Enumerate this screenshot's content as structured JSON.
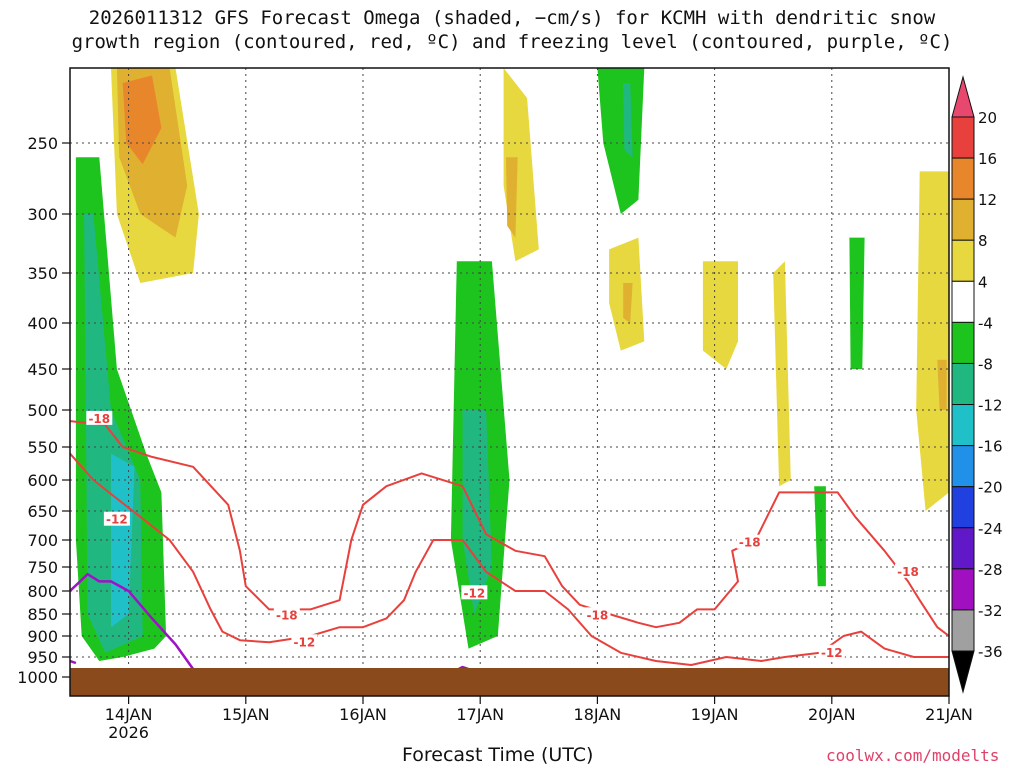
{
  "chart_data": {
    "type": "heatmap",
    "title_line1": "2026011312 GFS Forecast Omega (shaded, −cm/s) for KCMH with dendritic snow",
    "title_line2": "growth region (contoured, red, ºC) and freezing level (contoured, purple, ºC)",
    "xlabel": "Forecast Time (UTC)",
    "credit": "coolwx.com/modelts",
    "x_range_days": [
      0.0,
      7.5
    ],
    "x_ticks": [
      {
        "day": 0.5,
        "label": "14JAN",
        "sublabel": "2026"
      },
      {
        "day": 1.5,
        "label": "15JAN"
      },
      {
        "day": 2.5,
        "label": "16JAN"
      },
      {
        "day": 3.5,
        "label": "17JAN"
      },
      {
        "day": 4.5,
        "label": "18JAN"
      },
      {
        "day": 5.5,
        "label": "19JAN"
      },
      {
        "day": 6.5,
        "label": "20JAN"
      },
      {
        "day": 7.5,
        "label": "21JAN"
      }
    ],
    "y_range_hpa": [
      200,
      1030
    ],
    "y_ticks": [
      250,
      300,
      350,
      400,
      450,
      500,
      550,
      600,
      650,
      700,
      750,
      800,
      850,
      900,
      950,
      1000
    ],
    "colorbar": {
      "levels": [
        20,
        16,
        12,
        8,
        4,
        -4,
        -8,
        -12,
        -16,
        -20,
        -24,
        -28,
        -32,
        -36
      ],
      "colors": [
        "#e8486e",
        "#e8403c",
        "#e8862c",
        "#e0b030",
        "#e8d840",
        "#ffffff",
        "#1ec41e",
        "#20b880",
        "#20c0c8",
        "#2090e8",
        "#2040e0",
        "#6018c8",
        "#a010c0",
        "#a0a0a0",
        "#000000"
      ]
    },
    "omega_regions": [
      {
        "level": 4,
        "color": "#e8d840",
        "pts": [
          [
            0.35,
            200
          ],
          [
            0.9,
            200
          ],
          [
            1.1,
            300
          ],
          [
            1.05,
            350
          ],
          [
            0.6,
            360
          ],
          [
            0.4,
            300
          ]
        ]
      },
      {
        "level": 8,
        "color": "#e0b030",
        "pts": [
          [
            0.4,
            200
          ],
          [
            0.85,
            200
          ],
          [
            1.0,
            280
          ],
          [
            0.9,
            320
          ],
          [
            0.6,
            300
          ],
          [
            0.42,
            260
          ]
        ]
      },
      {
        "level": 12,
        "color": "#e8862c",
        "pts": [
          [
            0.45,
            210
          ],
          [
            0.7,
            205
          ],
          [
            0.78,
            240
          ],
          [
            0.62,
            265
          ],
          [
            0.48,
            250
          ]
        ]
      },
      {
        "level": -4,
        "color": "#1ec41e",
        "pts": [
          [
            0.05,
            260
          ],
          [
            0.25,
            260
          ],
          [
            0.4,
            450
          ],
          [
            0.65,
            560
          ],
          [
            0.78,
            620
          ],
          [
            0.82,
            900
          ],
          [
            0.72,
            930
          ],
          [
            0.45,
            950
          ],
          [
            0.25,
            960
          ],
          [
            0.1,
            900
          ],
          [
            0.05,
            700
          ]
        ]
      },
      {
        "level": -8,
        "color": "#20b880",
        "pts": [
          [
            0.12,
            300
          ],
          [
            0.2,
            300
          ],
          [
            0.35,
            500
          ],
          [
            0.6,
            600
          ],
          [
            0.62,
            900
          ],
          [
            0.3,
            940
          ],
          [
            0.15,
            850
          ]
        ]
      },
      {
        "level": -12,
        "color": "#20c0c8",
        "pts": [
          [
            0.35,
            560
          ],
          [
            0.55,
            580
          ],
          [
            0.5,
            850
          ],
          [
            0.35,
            880
          ]
        ]
      },
      {
        "level": -4,
        "color": "#1ec41e",
        "pts": [
          [
            3.3,
            340
          ],
          [
            3.6,
            340
          ],
          [
            3.75,
            600
          ],
          [
            3.65,
            900
          ],
          [
            3.4,
            930
          ],
          [
            3.25,
            700
          ]
        ]
      },
      {
        "level": -8,
        "color": "#20b880",
        "pts": [
          [
            3.35,
            500
          ],
          [
            3.55,
            500
          ],
          [
            3.6,
            750
          ],
          [
            3.45,
            850
          ],
          [
            3.35,
            700
          ]
        ]
      },
      {
        "level": 4,
        "color": "#e8d840",
        "pts": [
          [
            3.7,
            200
          ],
          [
            3.9,
            220
          ],
          [
            4.0,
            330
          ],
          [
            3.8,
            340
          ],
          [
            3.7,
            280
          ]
        ]
      },
      {
        "level": 8,
        "color": "#e0b030",
        "pts": [
          [
            3.72,
            260
          ],
          [
            3.82,
            260
          ],
          [
            3.8,
            320
          ],
          [
            3.73,
            310
          ]
        ]
      },
      {
        "level": -4,
        "color": "#1ec41e",
        "pts": [
          [
            4.5,
            200
          ],
          [
            4.9,
            200
          ],
          [
            4.85,
            290
          ],
          [
            4.7,
            300
          ],
          [
            4.55,
            250
          ]
        ]
      },
      {
        "level": -8,
        "color": "#20b880",
        "pts": [
          [
            4.72,
            210
          ],
          [
            4.78,
            210
          ],
          [
            4.8,
            260
          ],
          [
            4.73,
            255
          ]
        ]
      },
      {
        "level": 4,
        "color": "#e8d840",
        "pts": [
          [
            4.6,
            330
          ],
          [
            4.85,
            320
          ],
          [
            4.9,
            420
          ],
          [
            4.7,
            430
          ],
          [
            4.6,
            380
          ]
        ]
      },
      {
        "level": 8,
        "color": "#e0b030",
        "pts": [
          [
            4.72,
            360
          ],
          [
            4.8,
            360
          ],
          [
            4.78,
            400
          ],
          [
            4.72,
            395
          ]
        ]
      },
      {
        "level": 4,
        "color": "#e8d840",
        "pts": [
          [
            5.4,
            340
          ],
          [
            5.7,
            340
          ],
          [
            5.7,
            420
          ],
          [
            5.6,
            450
          ],
          [
            5.4,
            430
          ]
        ]
      },
      {
        "level": 4,
        "color": "#e8d840",
        "pts": [
          [
            6.0,
            350
          ],
          [
            6.1,
            340
          ],
          [
            6.15,
            600
          ],
          [
            6.05,
            610
          ]
        ]
      },
      {
        "level": -4,
        "color": "#1ec41e",
        "pts": [
          [
            6.35,
            610
          ],
          [
            6.45,
            610
          ],
          [
            6.45,
            790
          ],
          [
            6.38,
            790
          ]
        ]
      },
      {
        "level": -4,
        "color": "#1ec41e",
        "pts": [
          [
            6.65,
            320
          ],
          [
            6.78,
            320
          ],
          [
            6.76,
            450
          ],
          [
            6.66,
            450
          ]
        ]
      },
      {
        "level": 4,
        "color": "#e8d840",
        "pts": [
          [
            7.25,
            270
          ],
          [
            7.5,
            270
          ],
          [
            7.5,
            620
          ],
          [
            7.3,
            650
          ],
          [
            7.22,
            500
          ]
        ]
      },
      {
        "level": 8,
        "color": "#e0b030",
        "pts": [
          [
            7.4,
            440
          ],
          [
            7.48,
            440
          ],
          [
            7.48,
            500
          ],
          [
            7.42,
            500
          ]
        ]
      }
    ],
    "dgz_contours": [
      {
        "label": "-18",
        "pts": [
          [
            0.0,
            515
          ],
          [
            0.3,
            520
          ],
          [
            0.45,
            550
          ],
          [
            0.7,
            565
          ],
          [
            1.05,
            580
          ],
          [
            1.35,
            640
          ],
          [
            1.45,
            720
          ],
          [
            1.5,
            790
          ],
          [
            1.7,
            840
          ],
          [
            2.05,
            840
          ],
          [
            2.3,
            820
          ],
          [
            2.4,
            700
          ],
          [
            2.5,
            640
          ],
          [
            2.7,
            610
          ],
          [
            3.0,
            590
          ],
          [
            3.35,
            610
          ],
          [
            3.55,
            690
          ],
          [
            3.8,
            720
          ],
          [
            4.05,
            730
          ],
          [
            4.2,
            790
          ],
          [
            4.35,
            830
          ],
          [
            4.6,
            850
          ],
          [
            4.85,
            870
          ],
          [
            5.0,
            880
          ],
          [
            5.2,
            870
          ],
          [
            5.35,
            840
          ],
          [
            5.5,
            840
          ],
          [
            5.7,
            780
          ],
          [
            5.65,
            720
          ],
          [
            5.85,
            700
          ],
          [
            6.05,
            620
          ],
          [
            6.3,
            620
          ],
          [
            6.55,
            620
          ],
          [
            6.7,
            660
          ],
          [
            6.95,
            720
          ],
          [
            7.15,
            780
          ],
          [
            7.25,
            820
          ],
          [
            7.4,
            880
          ],
          [
            7.5,
            900
          ]
        ]
      },
      {
        "label": "-12",
        "pts": [
          [
            0.0,
            560
          ],
          [
            0.2,
            600
          ],
          [
            0.4,
            630
          ],
          [
            0.6,
            660
          ],
          [
            0.85,
            700
          ],
          [
            1.05,
            760
          ],
          [
            1.2,
            840
          ],
          [
            1.3,
            890
          ],
          [
            1.45,
            910
          ],
          [
            1.7,
            915
          ],
          [
            2.05,
            900
          ],
          [
            2.3,
            880
          ],
          [
            2.5,
            880
          ],
          [
            2.7,
            860
          ],
          [
            2.85,
            820
          ],
          [
            2.95,
            760
          ],
          [
            3.1,
            700
          ],
          [
            3.35,
            700
          ],
          [
            3.55,
            760
          ],
          [
            3.8,
            800
          ],
          [
            4.05,
            800
          ],
          [
            4.25,
            840
          ],
          [
            4.45,
            900
          ],
          [
            4.7,
            940
          ],
          [
            5.0,
            960
          ],
          [
            5.3,
            970
          ],
          [
            5.6,
            950
          ],
          [
            5.9,
            960
          ],
          [
            6.1,
            950
          ],
          [
            6.4,
            940
          ],
          [
            6.6,
            900
          ],
          [
            6.75,
            890
          ],
          [
            6.95,
            930
          ],
          [
            7.2,
            950
          ],
          [
            7.5,
            950
          ]
        ]
      }
    ],
    "dgz_labels": [
      {
        "text": "-18",
        "day": 0.25,
        "hpa": 512
      },
      {
        "text": "-12",
        "day": 0.4,
        "hpa": 665
      },
      {
        "text": "-18",
        "day": 1.85,
        "hpa": 853
      },
      {
        "text": "-12",
        "day": 2.0,
        "hpa": 915
      },
      {
        "text": "-12",
        "day": 3.45,
        "hpa": 805
      },
      {
        "text": "-18",
        "day": 4.5,
        "hpa": 853
      },
      {
        "text": "-18",
        "day": 5.8,
        "hpa": 705
      },
      {
        "text": "-12",
        "day": 6.5,
        "hpa": 940
      },
      {
        "text": "-18",
        "day": 7.15,
        "hpa": 760
      }
    ],
    "freezing_contours": [
      {
        "pts": [
          [
            0.0,
            800
          ],
          [
            0.15,
            765
          ],
          [
            0.25,
            780
          ],
          [
            0.35,
            780
          ],
          [
            0.5,
            800
          ],
          [
            0.7,
            860
          ],
          [
            0.9,
            920
          ],
          [
            1.05,
            980
          ]
        ]
      },
      {
        "pts": [
          [
            0.0,
            960
          ],
          [
            0.05,
            965
          ]
        ]
      },
      {
        "pts": [
          [
            3.25,
            990
          ],
          [
            3.35,
            975
          ],
          [
            3.45,
            985
          ]
        ]
      }
    ]
  }
}
